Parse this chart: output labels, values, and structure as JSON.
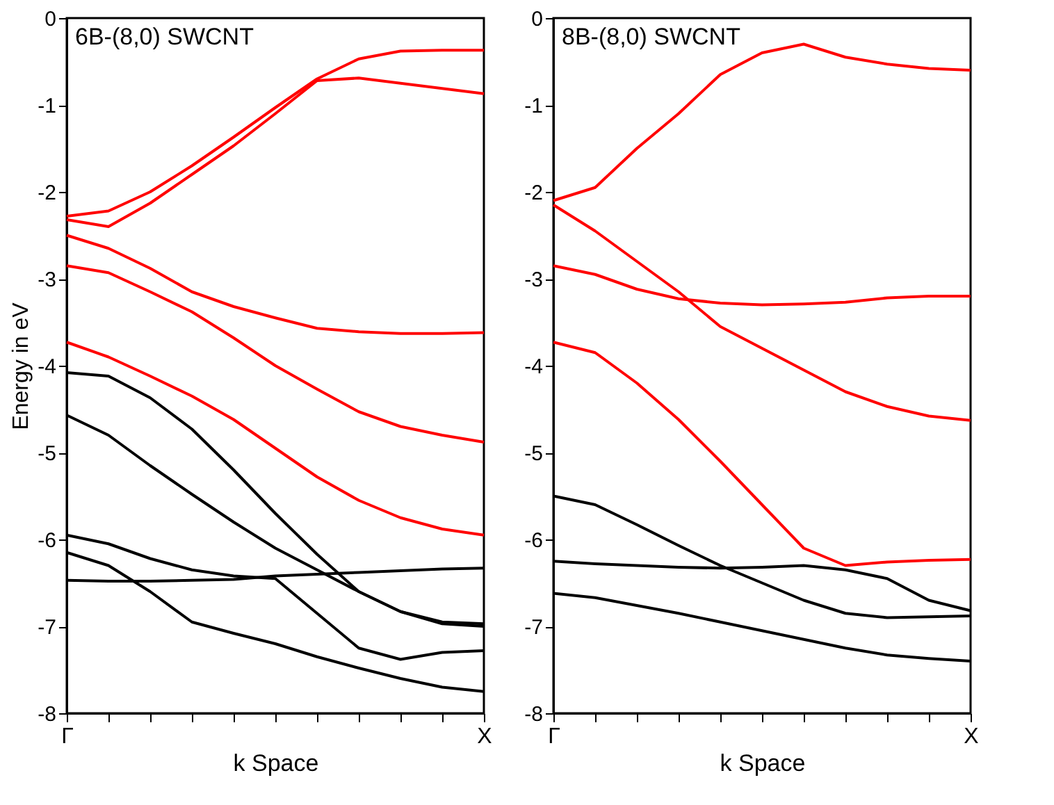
{
  "chart_data": [
    {
      "type": "line",
      "title": "6B-(8,0) SWCNT",
      "xlabel": "k Space",
      "ylabel": "Energy in eV",
      "categories": [
        "Γ",
        null,
        null,
        null,
        null,
        null,
        null,
        null,
        null,
        null,
        "X"
      ],
      "ylim": [
        -8,
        0
      ],
      "yticks": [
        -8,
        -7,
        -6,
        -5,
        -4,
        -3,
        -2,
        -1,
        0
      ],
      "grid": false,
      "legend": false,
      "series": [
        {
          "color": "#ff0000",
          "values": [
            -2.28,
            -2.22,
            -2.0,
            -1.7,
            -1.37,
            -1.03,
            -0.7,
            -0.47,
            -0.38,
            -0.37,
            -0.37
          ]
        },
        {
          "color": "#ff0000",
          "values": [
            -2.32,
            -2.4,
            -2.13,
            -1.8,
            -1.47,
            -1.1,
            -0.72,
            -0.69,
            -0.75,
            -0.81,
            -0.87
          ]
        },
        {
          "color": "#ff0000",
          "values": [
            -2.5,
            -2.65,
            -2.88,
            -3.15,
            -3.32,
            -3.45,
            -3.57,
            -3.61,
            -3.63,
            -3.63,
            -3.62
          ]
        },
        {
          "color": "#ff0000",
          "values": [
            -2.85,
            -2.93,
            -3.15,
            -3.38,
            -3.68,
            -4.0,
            -4.27,
            -4.53,
            -4.7,
            -4.8,
            -4.88
          ]
        },
        {
          "color": "#ff0000",
          "values": [
            -3.73,
            -3.9,
            -4.12,
            -4.35,
            -4.62,
            -4.95,
            -5.28,
            -5.55,
            -5.75,
            -5.88,
            -5.95
          ]
        },
        {
          "color": "#000000",
          "values": [
            -4.08,
            -4.12,
            -4.37,
            -4.73,
            -5.2,
            -5.7,
            -6.17,
            -6.6,
            -6.83,
            -6.97,
            -7.0
          ]
        },
        {
          "color": "#000000",
          "values": [
            -4.57,
            -4.8,
            -5.15,
            -5.48,
            -5.8,
            -6.1,
            -6.35,
            -6.6,
            -6.83,
            -6.95,
            -6.97
          ]
        },
        {
          "color": "#000000",
          "values": [
            -5.95,
            -6.05,
            -6.22,
            -6.35,
            -6.42,
            -6.45,
            -6.85,
            -7.25,
            -7.38,
            -7.3,
            -7.28
          ]
        },
        {
          "color": "#000000",
          "values": [
            -6.15,
            -6.3,
            -6.6,
            -6.95,
            -7.08,
            -7.2,
            -7.35,
            -7.48,
            -7.6,
            -7.7,
            -7.75
          ]
        },
        {
          "color": "#000000",
          "values": [
            -6.47,
            -6.48,
            -6.48,
            -6.47,
            -6.46,
            -6.42,
            -6.4,
            -6.38,
            -6.36,
            -6.34,
            -6.33
          ]
        }
      ]
    },
    {
      "type": "line",
      "title": "8B-(8,0) SWCNT",
      "xlabel": "k Space",
      "categories": [
        "Γ",
        null,
        null,
        null,
        null,
        null,
        null,
        null,
        null,
        null,
        "X"
      ],
      "ylim": [
        -8,
        0
      ],
      "yticks": [
        -8,
        -7,
        -6,
        -5,
        -4,
        -3,
        -2,
        -1,
        0
      ],
      "grid": false,
      "legend": false,
      "series": [
        {
          "color": "#ff0000",
          "values": [
            -2.1,
            -1.95,
            -1.5,
            -1.1,
            -0.65,
            -0.4,
            -0.3,
            -0.45,
            -0.53,
            -0.58,
            -0.6
          ]
        },
        {
          "color": "#ff0000",
          "values": [
            -2.15,
            -2.45,
            -2.8,
            -3.15,
            -3.55,
            -3.8,
            -4.05,
            -4.3,
            -4.47,
            -4.58,
            -4.63
          ]
        },
        {
          "color": "#ff0000",
          "values": [
            -2.85,
            -2.95,
            -3.12,
            -3.23,
            -3.28,
            -3.3,
            -3.29,
            -3.27,
            -3.22,
            -3.2,
            -3.2
          ]
        },
        {
          "color": "#ff0000",
          "values": [
            -3.73,
            -3.85,
            -4.2,
            -4.62,
            -5.1,
            -5.6,
            -6.1,
            -6.3,
            -6.26,
            -6.24,
            -6.23
          ]
        },
        {
          "color": "#000000",
          "values": [
            -5.5,
            -5.6,
            -5.83,
            -6.07,
            -6.3,
            -6.5,
            -6.7,
            -6.85,
            -6.9,
            -6.89,
            -6.88
          ]
        },
        {
          "color": "#000000",
          "values": [
            -6.25,
            -6.28,
            -6.3,
            -6.32,
            -6.33,
            -6.32,
            -6.3,
            -6.35,
            -6.45,
            -6.7,
            -6.82
          ]
        },
        {
          "color": "#000000",
          "values": [
            -6.62,
            -6.67,
            -6.76,
            -6.85,
            -6.95,
            -7.05,
            -7.15,
            -7.25,
            -7.33,
            -7.37,
            -7.4
          ]
        }
      ]
    }
  ]
}
